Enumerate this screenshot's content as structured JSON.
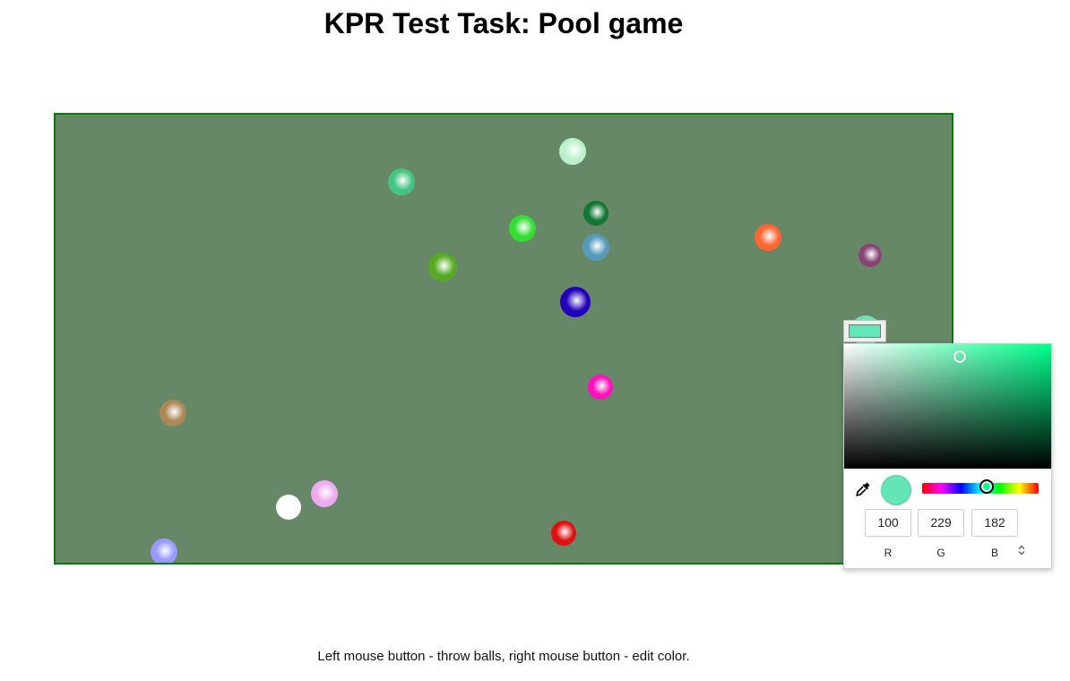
{
  "header": {
    "title": "KPR Test Task: Pool game"
  },
  "table": {
    "felt_color": "#668866",
    "border_color": "#0a7a0a",
    "balls": [
      {
        "id": "b1",
        "color": "#bbf0cc"
      },
      {
        "id": "b2",
        "color": "#44c483"
      },
      {
        "id": "b3",
        "color": "#117733"
      },
      {
        "id": "b4",
        "color": "#33dd33"
      },
      {
        "id": "b5",
        "color": "#5599bb"
      },
      {
        "id": "b6",
        "color": "#ff6633"
      },
      {
        "id": "b7",
        "color": "#884477"
      },
      {
        "id": "b8",
        "color": "#55aa22"
      },
      {
        "id": "b9",
        "color": "#2200bb"
      },
      {
        "id": "b10",
        "color": "#64e5b6"
      },
      {
        "id": "b11",
        "color": "#ff11bb"
      },
      {
        "id": "b12",
        "color": "#aa8855"
      },
      {
        "id": "b13",
        "color": "#eeaaee"
      },
      {
        "id": "b14",
        "color": "#ffffff"
      },
      {
        "id": "b15",
        "color": "#dd1111"
      },
      {
        "id": "b16",
        "color": "#9999ff"
      }
    ]
  },
  "instructions": {
    "text": "Left mouse button - throw balls, right mouse button - edit color."
  },
  "color_picker": {
    "current_color": "#64e5b6",
    "hue_color": "#00ff8c",
    "saturation": 0.56,
    "value": 0.9,
    "hue_fraction": 0.555,
    "r": "100",
    "g": "229",
    "b": "182",
    "r_label": "R",
    "g_label": "G",
    "b_label": "B",
    "mode_toggle_icon": "updown-arrows-icon",
    "eyedropper_icon": "eyedropper-icon"
  }
}
